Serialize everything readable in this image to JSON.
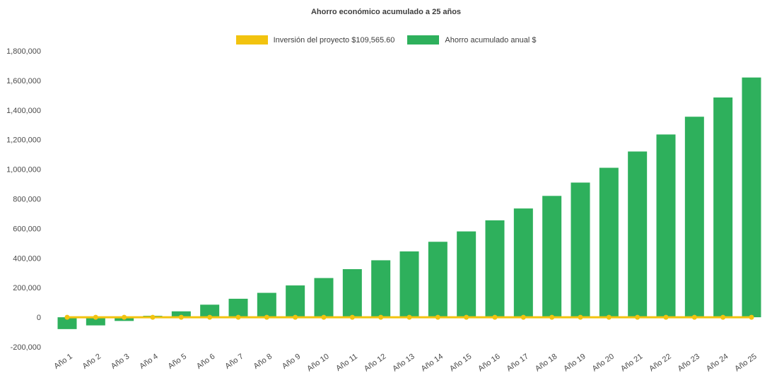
{
  "title": "Ahorro económico acumulado a 25 años",
  "legend": {
    "items": [
      {
        "label": "Inversión del proyecto $109,565.60",
        "color": "#f2c30f",
        "series": "line"
      },
      {
        "label": "Ahorro acumulado anual $",
        "color": "#2eb05c",
        "series": "bar"
      }
    ]
  },
  "colors": {
    "bar": "#2eb05c",
    "line": "#f2c30f",
    "text": "#4a4a4a",
    "background": "#ffffff"
  },
  "chart_data": {
    "type": "bar",
    "title": "Ahorro económico acumulado a 25 años",
    "categories": [
      "Año 1",
      "Año 2",
      "Año 3",
      "Año 4",
      "Año 5",
      "Año 6",
      "Año 7",
      "Año 8",
      "Año 9",
      "Año 10",
      "Año 11",
      "Año 12",
      "Año 13",
      "Año 14",
      "Año 15",
      "Año 16",
      "Año 17",
      "Año 18",
      "Año 19",
      "Año 20",
      "Año 21",
      "Año 22",
      "Año 23",
      "Año 24",
      "Año 25"
    ],
    "series": [
      {
        "name": "Ahorro acumulado anual $",
        "type": "bar",
        "color": "#2eb05c",
        "values": [
          -80000,
          -55000,
          -25000,
          10000,
          40000,
          85000,
          125000,
          165000,
          215000,
          265000,
          325000,
          385000,
          445000,
          510000,
          580000,
          655000,
          735000,
          820000,
          910000,
          1010000,
          1120000,
          1235000,
          1355000,
          1485000,
          1620000
        ]
      },
      {
        "name": "Inversión del proyecto $109,565.60",
        "type": "line",
        "color": "#f2c30f",
        "investment_amount_label": "$109,565.60",
        "values": [
          0,
          0,
          0,
          0,
          0,
          0,
          0,
          0,
          0,
          0,
          0,
          0,
          0,
          0,
          0,
          0,
          0,
          0,
          0,
          0,
          0,
          0,
          0,
          0,
          0
        ]
      }
    ],
    "ylim": [
      -200000,
      1800000
    ],
    "yticks": [
      1800000,
      1600000,
      1400000,
      1200000,
      1000000,
      800000,
      600000,
      400000,
      200000,
      0,
      -200000
    ],
    "ytick_step": 200000,
    "grid": false,
    "legend_position": "top",
    "xlabel_rotation": -35
  }
}
